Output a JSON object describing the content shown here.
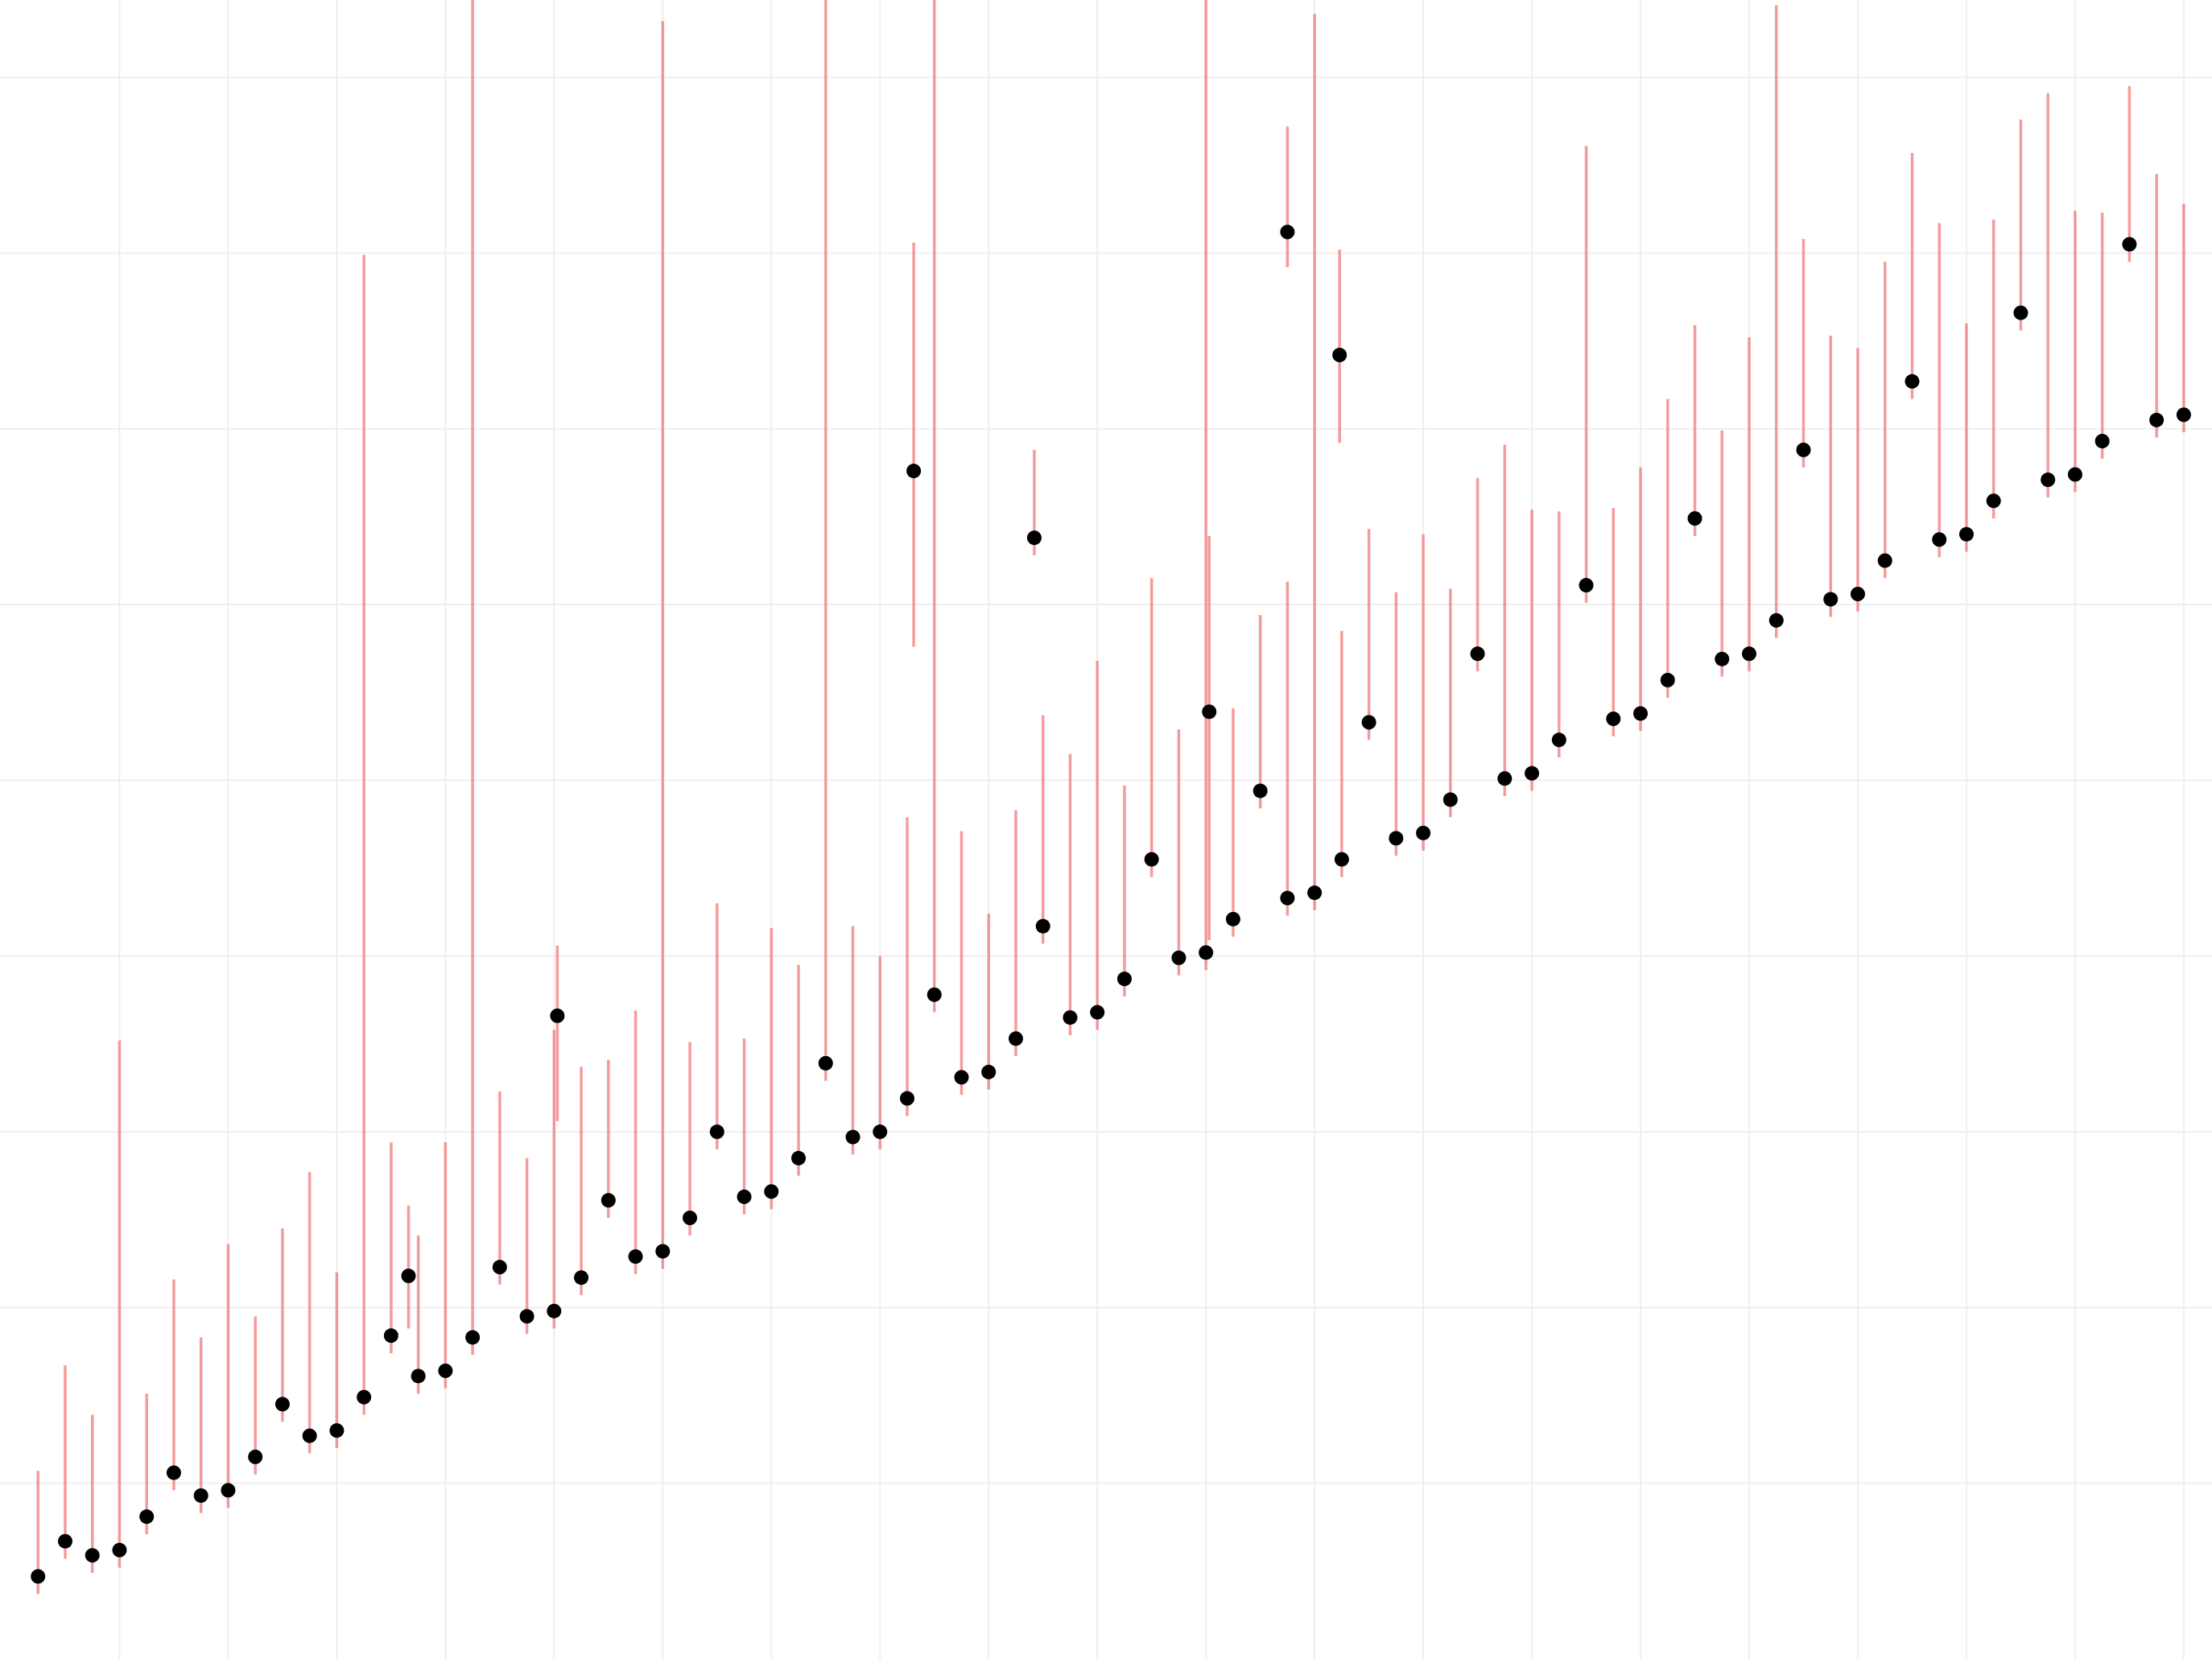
{
  "chart_data": {
    "type": "scatter",
    "xlim": [
      -0.1,
      20.26
    ],
    "ylim": [
      0,
      9.44
    ],
    "xticks": [
      1,
      2,
      3,
      4,
      5,
      6,
      7,
      8,
      9,
      10,
      11,
      12,
      13,
      14,
      15,
      16,
      17,
      18,
      19,
      20
    ],
    "yticks": [
      1,
      2,
      3,
      4,
      5,
      6,
      7,
      8,
      9
    ],
    "grid": true,
    "series": [
      {
        "color": "#000000",
        "error_color": "#f07070",
        "x": [
          0.25,
          0.5,
          0.75,
          1.0,
          1.25,
          1.5,
          1.75,
          2.0,
          2.25,
          2.5,
          2.75,
          3.0,
          3.25,
          3.5,
          3.75,
          4.0,
          4.25,
          4.5,
          4.75,
          5.0,
          5.25,
          5.5,
          5.75,
          6.0,
          6.25,
          6.5,
          6.75,
          7.0,
          7.25,
          7.5,
          7.75,
          8.0,
          8.25,
          8.5,
          8.75,
          9.0,
          9.25,
          9.5,
          9.75,
          10.0,
          10.25,
          10.5,
          10.75,
          11.0,
          11.25,
          11.5,
          11.75,
          12.0,
          12.25,
          12.5,
          12.75,
          13.0,
          13.25,
          13.5,
          13.75,
          14.0,
          14.25,
          14.5,
          14.75,
          15.0,
          15.25,
          15.5,
          15.75,
          16.0,
          16.25,
          16.5,
          16.75,
          17.0,
          17.25,
          17.5,
          17.75,
          18.0,
          18.25,
          18.5,
          18.75,
          19.0,
          19.25,
          19.5,
          19.75,
          20.0,
          3.66,
          5.03,
          8.31,
          9.42,
          11.03,
          11.75,
          12.23
        ],
        "values": [
          0.47,
          0.67,
          0.59,
          0.62,
          0.81,
          1.06,
          0.93,
          0.96,
          1.15,
          1.45,
          1.27,
          1.3,
          1.49,
          1.84,
          1.61,
          1.64,
          1.83,
          2.23,
          1.95,
          1.98,
          2.17,
          2.61,
          2.29,
          2.32,
          2.51,
          3.0,
          2.63,
          2.66,
          2.85,
          3.39,
          2.97,
          3.0,
          3.19,
          3.78,
          3.31,
          3.34,
          3.53,
          4.17,
          3.65,
          3.68,
          3.87,
          4.55,
          3.99,
          4.02,
          4.21,
          4.94,
          4.33,
          4.36,
          4.55,
          5.33,
          4.67,
          4.7,
          4.89,
          5.72,
          5.01,
          5.04,
          5.23,
          6.11,
          5.35,
          5.38,
          5.57,
          6.49,
          5.69,
          5.72,
          5.91,
          6.88,
          6.03,
          6.06,
          6.25,
          7.27,
          6.37,
          6.4,
          6.59,
          7.66,
          6.71,
          6.74,
          6.93,
          8.05,
          7.05,
          7.08,
          2.18,
          3.66,
          6.76,
          6.38,
          5.39,
          8.12,
          7.42
        ],
        "error_low": [
          0.1,
          0.1,
          0.1,
          0.1,
          0.1,
          0.1,
          0.1,
          0.1,
          0.1,
          0.1,
          0.1,
          0.1,
          0.1,
          0.1,
          0.1,
          0.1,
          0.1,
          0.1,
          0.1,
          0.1,
          0.1,
          0.1,
          0.1,
          0.1,
          0.1,
          0.1,
          0.1,
          0.1,
          0.1,
          0.1,
          0.1,
          0.1,
          0.1,
          0.1,
          0.1,
          0.1,
          0.1,
          0.1,
          0.1,
          0.1,
          0.1,
          0.1,
          0.1,
          0.1,
          0.1,
          0.1,
          0.1,
          0.1,
          0.1,
          0.1,
          0.1,
          0.1,
          0.1,
          0.1,
          0.1,
          0.1,
          0.1,
          0.1,
          0.1,
          0.1,
          0.1,
          0.1,
          0.1,
          0.1,
          0.1,
          0.1,
          0.1,
          0.1,
          0.1,
          0.1,
          0.1,
          0.1,
          0.1,
          0.1,
          0.1,
          0.1,
          0.1,
          0.1,
          0.1,
          0.1,
          0.3,
          0.6,
          1.0,
          0.1,
          1.3,
          0.2,
          0.5
        ],
        "error_high": [
          0.6,
          1.0,
          0.8,
          2.9,
          0.7,
          1.1,
          0.9,
          1.4,
          0.8,
          1.0,
          1.5,
          0.9,
          6.5,
          1.1,
          0.8,
          1.3,
          8.5,
          1.0,
          0.9,
          1.6,
          1.2,
          0.8,
          1.4,
          7.0,
          1.0,
          1.3,
          0.9,
          1.5,
          1.1,
          6.8,
          1.2,
          1.0,
          1.6,
          5.9,
          1.4,
          0.9,
          1.3,
          1.2,
          1.5,
          2.0,
          1.1,
          1.6,
          1.3,
          5.5,
          1.2,
          1.0,
          1.8,
          5.0,
          1.3,
          1.1,
          1.4,
          1.7,
          1.2,
          1.0,
          1.9,
          1.5,
          1.3,
          2.5,
          1.2,
          1.4,
          1.6,
          1.1,
          1.3,
          1.8,
          3.5,
          1.2,
          1.5,
          1.4,
          1.7,
          1.3,
          1.8,
          1.2,
          1.6,
          1.1,
          2.2,
          1.5,
          1.3,
          0.9,
          1.4,
          1.2,
          0.4,
          0.4,
          1.3,
          0.5,
          1.0,
          0.6,
          0.6
        ]
      }
    ]
  }
}
